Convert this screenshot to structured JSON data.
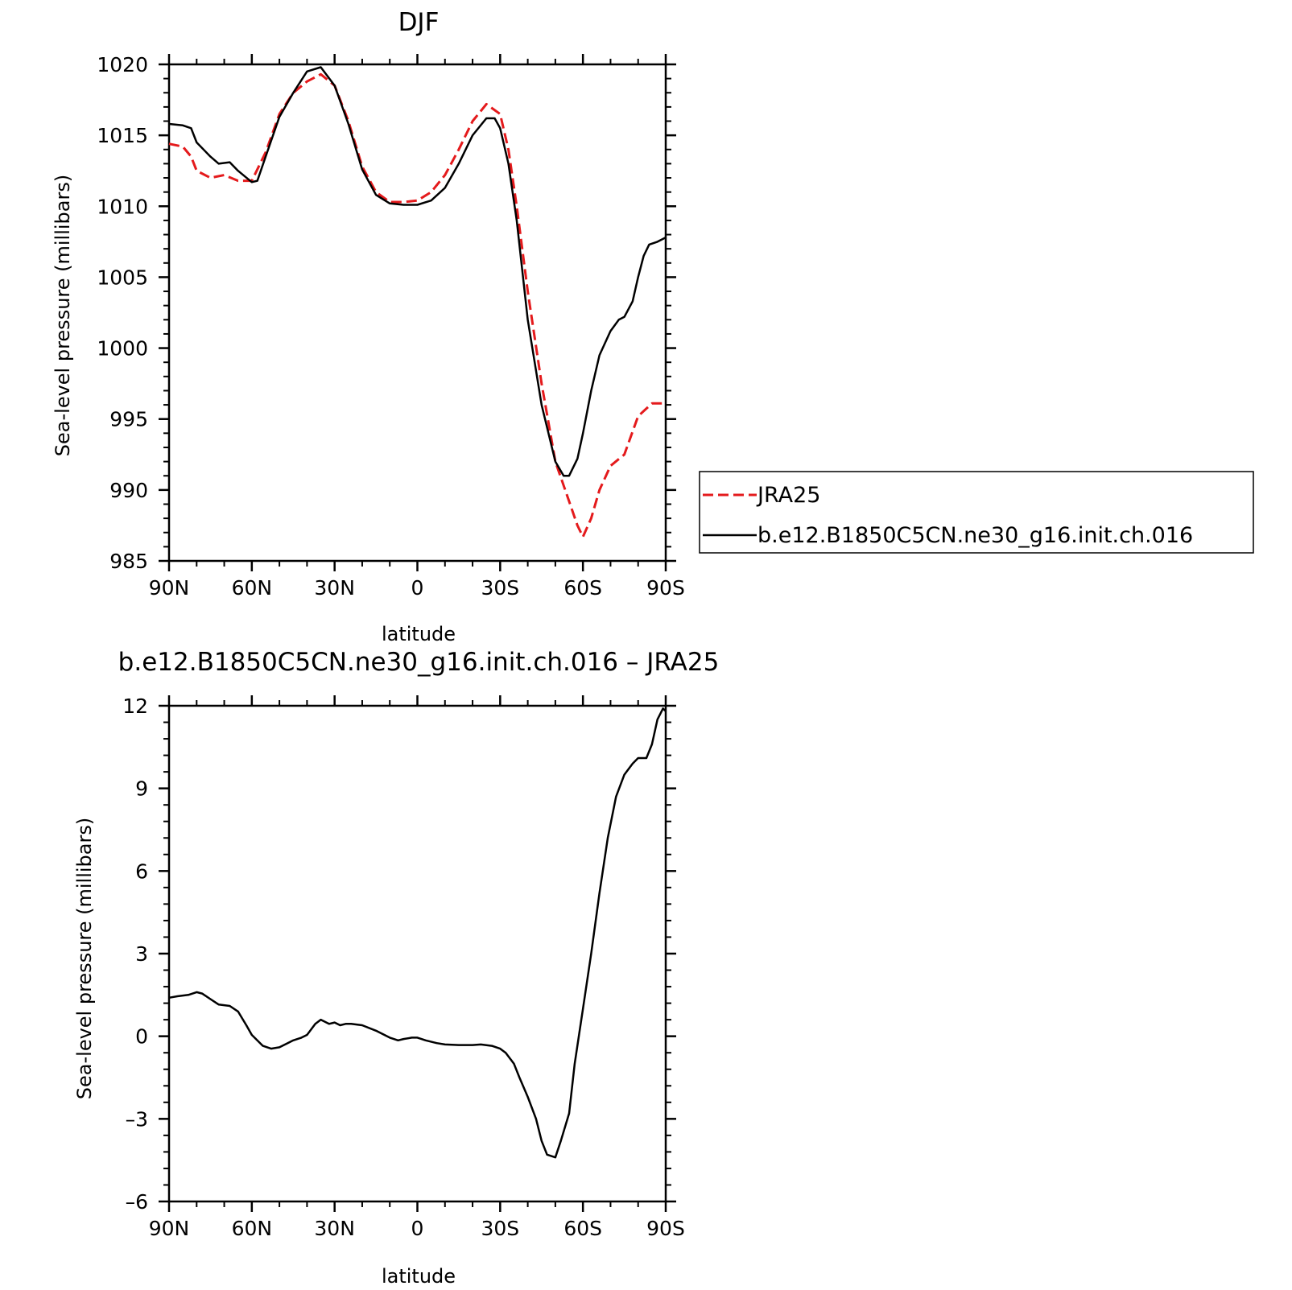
{
  "chart_data": [
    {
      "type": "line",
      "title": "DJF",
      "xlabel": "latitude",
      "ylabel": "Sea-level pressure (millibars)",
      "xlim": [
        90,
        -90
      ],
      "ylim": [
        985,
        1020
      ],
      "x_tick_values": [
        90,
        60,
        30,
        0,
        -30,
        -60,
        -90
      ],
      "x_tick_labels": [
        "90N",
        "60N",
        "30N",
        "0",
        "30S",
        "60S",
        "90S"
      ],
      "y_tick_values": [
        985,
        990,
        995,
        1000,
        1005,
        1010,
        1015,
        1020
      ],
      "y_tick_labels": [
        "985",
        "990",
        "995",
        "1000",
        "1005",
        "1010",
        "1015",
        "1020"
      ],
      "legend_position": "right",
      "series": [
        {
          "name": "JRA25",
          "color": "#e41a1c",
          "dash": "dashed",
          "x": [
            90,
            85,
            82,
            80,
            75,
            70,
            65,
            60,
            55,
            50,
            45,
            40,
            35,
            30,
            25,
            20,
            15,
            10,
            5,
            0,
            -5,
            -10,
            -15,
            -20,
            -25,
            -30,
            -33,
            -36,
            -40,
            -45,
            -50,
            -55,
            -58,
            -60,
            -63,
            -66,
            -70,
            -75,
            -80,
            -85,
            -90
          ],
          "y": [
            1014.4,
            1014.2,
            1013.5,
            1012.5,
            1012.0,
            1012.2,
            1011.8,
            1011.8,
            1013.8,
            1016.5,
            1018.0,
            1018.8,
            1019.3,
            1018.5,
            1016.0,
            1012.8,
            1011.0,
            1010.3,
            1010.3,
            1010.4,
            1011.0,
            1012.2,
            1014.0,
            1016.0,
            1017.2,
            1016.5,
            1014.0,
            1010.0,
            1004.0,
            997.5,
            992.0,
            989.2,
            987.5,
            986.7,
            988.0,
            990.0,
            991.7,
            992.5,
            995.2,
            996.1,
            996.1
          ]
        },
        {
          "name": "b.e12.B1850C5CN.ne30_g16.init.ch.016",
          "color": "#000000",
          "dash": "solid",
          "x": [
            90,
            85,
            82,
            80,
            75,
            72,
            68,
            65,
            60,
            58,
            55,
            50,
            45,
            40,
            35,
            30,
            25,
            20,
            15,
            10,
            5,
            0,
            -5,
            -10,
            -15,
            -20,
            -25,
            -28,
            -30,
            -33,
            -36,
            -40,
            -45,
            -50,
            -53,
            -55,
            -58,
            -60,
            -63,
            -66,
            -70,
            -73,
            -75,
            -78,
            -80,
            -82,
            -84,
            -87,
            -90
          ],
          "y": [
            1015.8,
            1015.7,
            1015.5,
            1014.5,
            1013.5,
            1013.0,
            1013.1,
            1012.5,
            1011.7,
            1011.8,
            1013.5,
            1016.3,
            1018.0,
            1019.5,
            1019.8,
            1018.5,
            1015.8,
            1012.6,
            1010.8,
            1010.2,
            1010.1,
            1010.1,
            1010.4,
            1011.3,
            1013.0,
            1015.0,
            1016.2,
            1016.2,
            1015.5,
            1013.0,
            1009.0,
            1002.0,
            996.0,
            992.0,
            991.0,
            991.0,
            992.2,
            994.0,
            997.0,
            999.5,
            1001.2,
            1002.0,
            1002.2,
            1003.3,
            1005.0,
            1006.5,
            1007.3,
            1007.5,
            1007.8
          ]
        }
      ]
    },
    {
      "type": "line",
      "title": "b.e12.B1850C5CN.ne30_g16.init.ch.016 – JRA25",
      "xlabel": "latitude",
      "ylabel": "Sea-level pressure (millibars)",
      "xlim": [
        90,
        -90
      ],
      "ylim": [
        -6,
        12
      ],
      "x_tick_values": [
        90,
        60,
        30,
        0,
        -30,
        -60,
        -90
      ],
      "x_tick_labels": [
        "90N",
        "60N",
        "30N",
        "0",
        "30S",
        "60S",
        "90S"
      ],
      "y_tick_values": [
        -6,
        -3,
        0,
        3,
        6,
        9,
        12
      ],
      "y_tick_labels": [
        "–6",
        "–3",
        "0",
        "3",
        "6",
        "9",
        "12"
      ],
      "series": [
        {
          "color": "#000000",
          "dash": "solid",
          "x": [
            90,
            87,
            83,
            80,
            78,
            75,
            72,
            68,
            65,
            62,
            60,
            56,
            53,
            50,
            47,
            45,
            42,
            40,
            37,
            35,
            32,
            30,
            28,
            26,
            24,
            20,
            15,
            10,
            7,
            5,
            2,
            0,
            -3,
            -7,
            -10,
            -15,
            -20,
            -23,
            -27,
            -30,
            -32,
            -35,
            -37,
            -40,
            -43,
            -45,
            -47,
            -50,
            -52,
            -55,
            -57,
            -60,
            -63,
            -66,
            -69,
            -72,
            -75,
            -78,
            -80,
            -83,
            -85,
            -87,
            -89,
            -90
          ],
          "y": [
            1.4,
            1.45,
            1.5,
            1.6,
            1.55,
            1.35,
            1.15,
            1.1,
            0.9,
            0.4,
            0.05,
            -0.35,
            -0.45,
            -0.4,
            -0.25,
            -0.15,
            -0.05,
            0.05,
            0.45,
            0.6,
            0.45,
            0.5,
            0.4,
            0.45,
            0.45,
            0.4,
            0.2,
            -0.05,
            -0.15,
            -0.1,
            -0.05,
            -0.05,
            -0.15,
            -0.25,
            -0.3,
            -0.32,
            -0.32,
            -0.3,
            -0.35,
            -0.45,
            -0.6,
            -1.0,
            -1.5,
            -2.2,
            -3.0,
            -3.8,
            -4.3,
            -4.4,
            -3.8,
            -2.8,
            -1.0,
            1.0,
            3.0,
            5.2,
            7.2,
            8.7,
            9.5,
            9.9,
            10.1,
            10.1,
            10.6,
            11.5,
            11.9,
            11.8
          ]
        }
      ]
    }
  ],
  "legend": {
    "entries": [
      "JRA25",
      "b.e12.B1850C5CN.ne30_g16.init.ch.016"
    ]
  }
}
